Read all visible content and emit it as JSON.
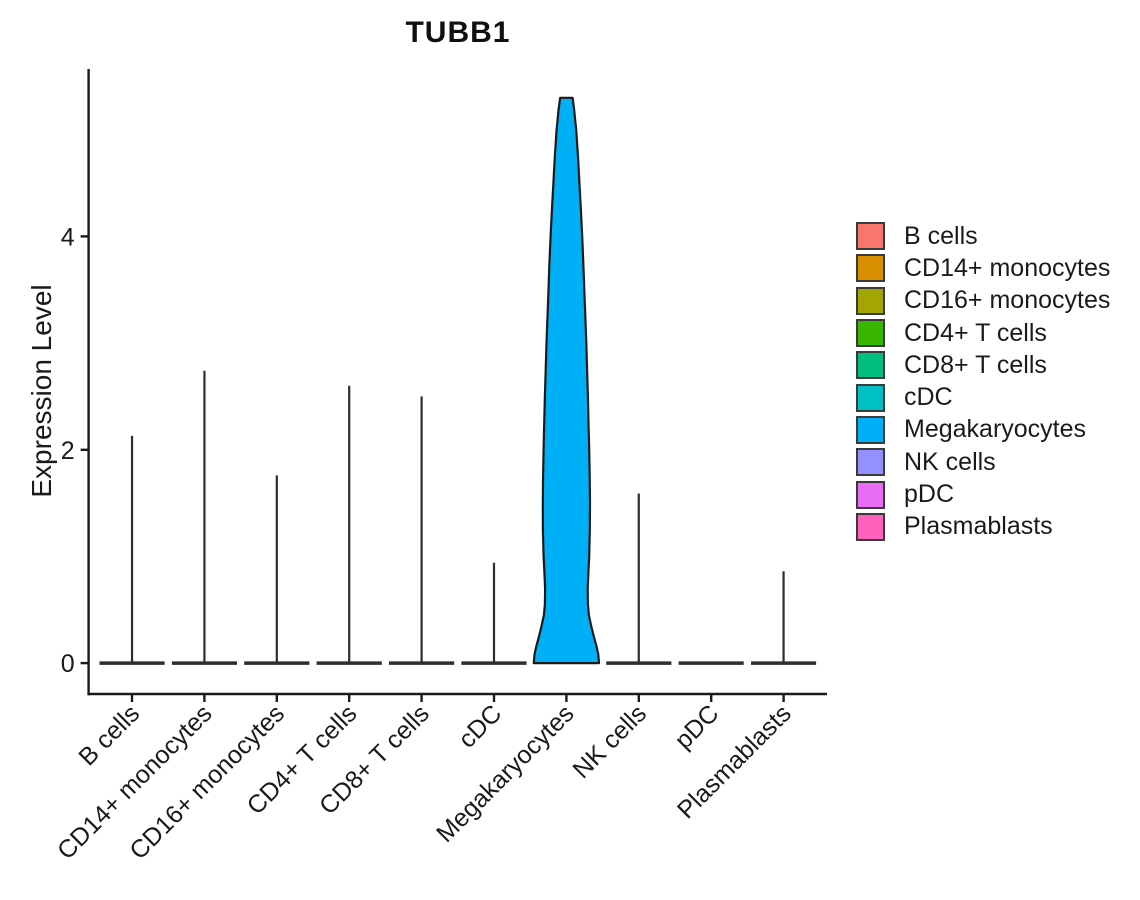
{
  "chart_data": {
    "type": "violin",
    "title": "TUBB1",
    "xlabel": "",
    "ylabel": "Expression Level",
    "y_ticks": [
      0,
      2,
      4
    ],
    "ylim": [
      -0.29,
      5.57
    ],
    "grid": false,
    "legend_position": "right",
    "categories": [
      "B cells",
      "CD14+ monocytes",
      "CD16+ monocytes",
      "CD4+ T cells",
      "CD8+ T cells",
      "cDC",
      "Megakaryocytes",
      "NK cells",
      "pDC",
      "Plasmablasts"
    ],
    "series": [
      {
        "name": "B cells",
        "color": "#F8766D",
        "max_expression": 2.13,
        "zero_inflated": true
      },
      {
        "name": "CD14+ monocytes",
        "color": "#D89000",
        "max_expression": 2.74,
        "zero_inflated": true
      },
      {
        "name": "CD16+ monocytes",
        "color": "#A3A500",
        "max_expression": 1.76,
        "zero_inflated": true
      },
      {
        "name": "CD4+ T cells",
        "color": "#39B600",
        "max_expression": 2.6,
        "zero_inflated": true
      },
      {
        "name": "CD8+ T cells",
        "color": "#00BF7D",
        "max_expression": 2.5,
        "zero_inflated": true
      },
      {
        "name": "cDC",
        "color": "#00BFC4",
        "max_expression": 0.94,
        "zero_inflated": true
      },
      {
        "name": "Megakaryocytes",
        "color": "#00B0F6",
        "max_expression": 5.3,
        "zero_inflated": false,
        "violin_profile": [
          [
            5.3,
            0.19
          ],
          [
            5.2,
            0.235
          ],
          [
            5.0,
            0.3
          ],
          [
            4.75,
            0.355
          ],
          [
            4.5,
            0.4
          ],
          [
            4.25,
            0.445
          ],
          [
            4.0,
            0.485
          ],
          [
            3.75,
            0.52
          ],
          [
            3.5,
            0.55
          ],
          [
            3.25,
            0.58
          ],
          [
            3.0,
            0.61
          ],
          [
            2.75,
            0.635
          ],
          [
            2.5,
            0.66
          ],
          [
            2.25,
            0.68
          ],
          [
            2.0,
            0.7
          ],
          [
            1.75,
            0.715
          ],
          [
            1.5,
            0.725
          ],
          [
            1.25,
            0.72
          ],
          [
            1.0,
            0.7
          ],
          [
            0.85,
            0.675
          ],
          [
            0.7,
            0.655
          ],
          [
            0.55,
            0.66
          ],
          [
            0.45,
            0.69
          ],
          [
            0.35,
            0.76
          ],
          [
            0.25,
            0.84
          ],
          [
            0.15,
            0.93
          ],
          [
            0.08,
            0.98
          ],
          [
            0.0,
            1.0
          ]
        ]
      },
      {
        "name": "NK cells",
        "color": "#9590FF",
        "max_expression": 1.59,
        "zero_inflated": true
      },
      {
        "name": "pDC",
        "color": "#E76BF3",
        "max_expression": 0.0,
        "zero_inflated": true
      },
      {
        "name": "Plasmablasts",
        "color": "#FF62BC",
        "max_expression": 0.86,
        "zero_inflated": true
      }
    ],
    "colors": {
      "axis": "#1a1a1a",
      "text": "#1a1a1a",
      "violin_outline": "#1a1a1a",
      "collapsed_violin": "#2e2e2e",
      "background": "#ffffff"
    }
  }
}
